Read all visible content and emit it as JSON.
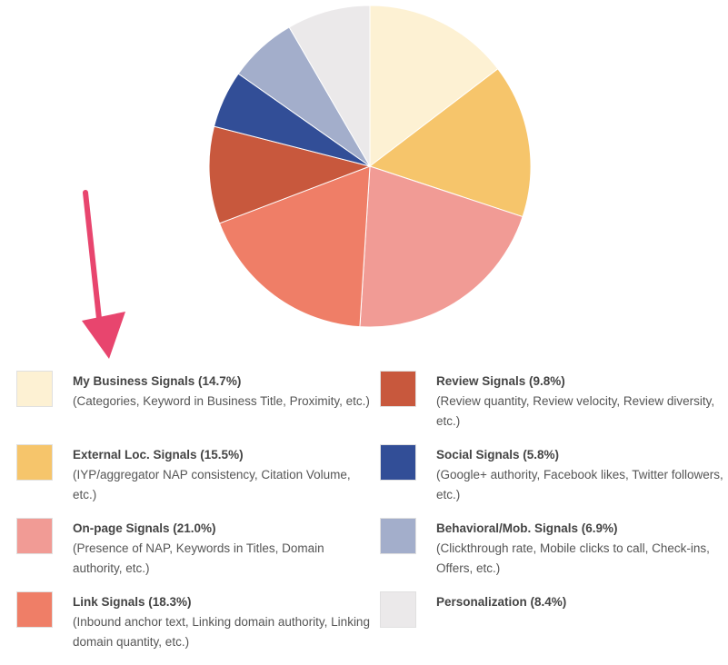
{
  "chart_data": {
    "type": "pie",
    "slices": [
      {
        "label": "My Business Signals",
        "value": 14.7,
        "display": "My Business Signals (14.7%)",
        "desc": "(Categories, Keyword in Business Title, Proximity, etc.)",
        "color": "#fdf1d3"
      },
      {
        "label": "External Loc. Signals",
        "value": 15.5,
        "display": "External Loc. Signals (15.5%)",
        "desc": "(IYP/aggregator NAP consistency, Citation Volume, etc.)",
        "color": "#f6c56b"
      },
      {
        "label": "On-page Signals",
        "value": 21.0,
        "display": "On-page Signals (21.0%)",
        "desc": "(Presence of NAP, Keywords in Titles, Domain authority, etc.)",
        "color": "#f19b95"
      },
      {
        "label": "Link Signals",
        "value": 18.3,
        "display": "Link Signals (18.3%)",
        "desc": "(Inbound anchor text, Linking domain authority, Linking domain quantity, etc.)",
        "color": "#ef7e67"
      },
      {
        "label": "Review Signals",
        "value": 9.8,
        "display": "Review Signals (9.8%)",
        "desc": "(Review quantity, Review velocity, Review diversity, etc.)",
        "color": "#c8583d"
      },
      {
        "label": "Social Signals",
        "value": 5.8,
        "display": "Social Signals (5.8%)",
        "desc": "(Google+ authority, Facebook likes, Twitter followers, etc.)",
        "color": "#324e97"
      },
      {
        "label": "Behavioral/Mob. Signals",
        "value": 6.9,
        "display": "Behavioral/Mob. Signals (6.9%)",
        "desc": "(Clickthrough rate, Mobile clicks to call, Check-ins, Offers, etc.)",
        "color": "#a3aecb"
      },
      {
        "label": "Personalization",
        "value": 8.4,
        "display": "Personalization (8.4%)",
        "desc": "",
        "color": "#ebe9ea"
      }
    ],
    "legend_placement": "bottom",
    "annotation_arrow_color": "#e8456e"
  }
}
